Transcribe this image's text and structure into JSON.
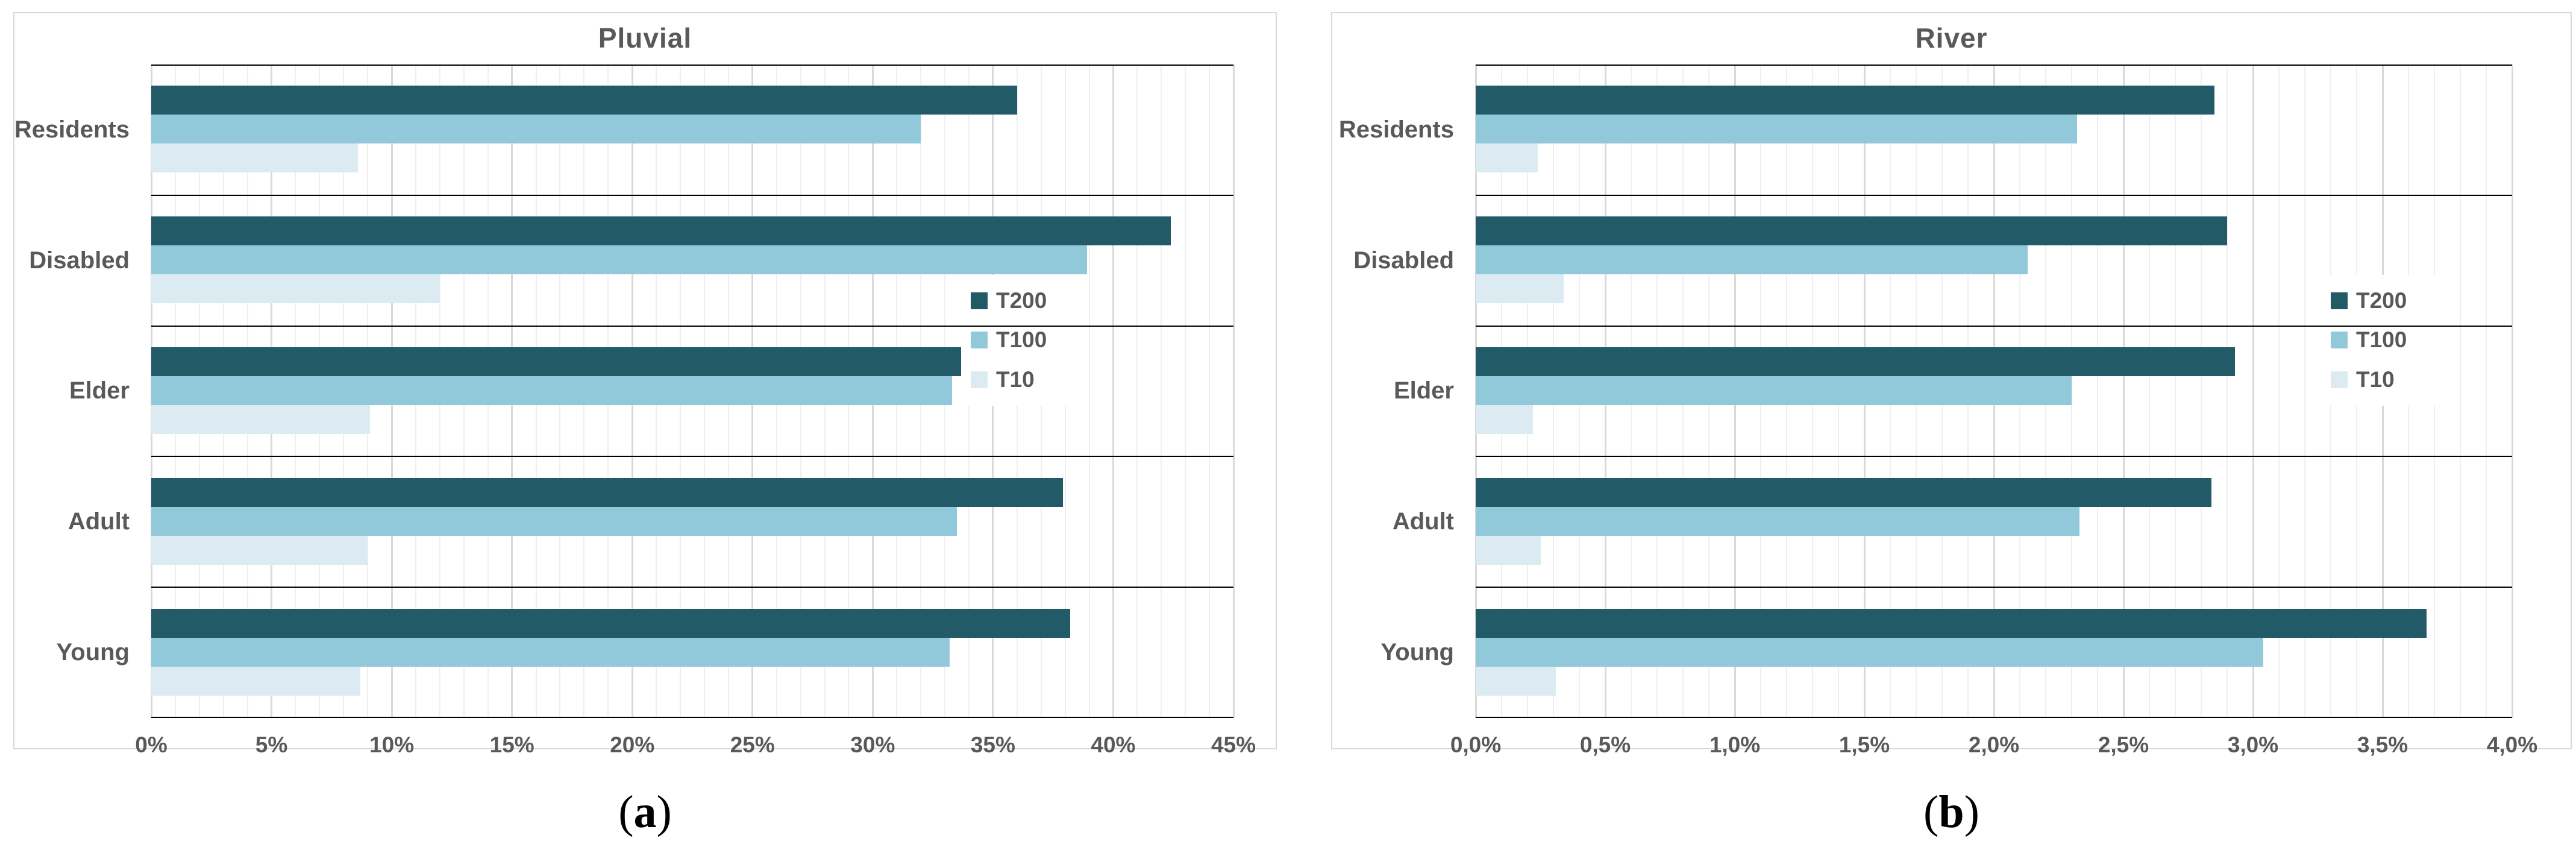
{
  "page": {
    "background": "#ffffff",
    "text_color": "#595959"
  },
  "colors": {
    "t200": "#235a67",
    "t100": "#92c9da",
    "t10": "#dcebf2",
    "grid_major": "#d9d9d9",
    "grid_minor": "#efefef",
    "axis_line": "#000000",
    "panel_border": "#d9d9d9",
    "label_text": "#595959"
  },
  "captions": [
    {
      "open": "(",
      "letter": "a",
      "close": ")"
    },
    {
      "open": "(",
      "letter": "b",
      "close": ")"
    }
  ],
  "chart_data": [
    {
      "type": "bar",
      "orientation": "horizontal",
      "title": "Pluvial",
      "categories": [
        "Residents",
        "Disabled",
        "Elder",
        "Adult",
        "Young"
      ],
      "series": [
        {
          "name": "T200",
          "color": "#235a67",
          "values": [
            36.0,
            42.4,
            37.2,
            37.9,
            38.2
          ]
        },
        {
          "name": "T100",
          "color": "#92c9da",
          "values": [
            32.0,
            38.9,
            33.3,
            33.5,
            33.2
          ]
        },
        {
          "name": "T10",
          "color": "#dcebf2",
          "values": [
            8.6,
            12.0,
            9.1,
            9.0,
            8.7
          ]
        }
      ],
      "xlim": [
        0,
        45
      ],
      "tick_step": 5,
      "minor_step": 1,
      "ticks": [
        "0%",
        "5%",
        "10%",
        "15%",
        "20%",
        "25%",
        "30%",
        "35%",
        "40%",
        "45%"
      ],
      "unit": "%",
      "grid": true,
      "legend_position": "right-middle",
      "legend_entries": [
        "T200",
        "T100",
        "T10"
      ]
    },
    {
      "type": "bar",
      "orientation": "horizontal",
      "title": "River",
      "categories": [
        "Residents",
        "Disabled",
        "Elder",
        "Adult",
        "Young"
      ],
      "series": [
        {
          "name": "T200",
          "color": "#235a67",
          "values": [
            2.85,
            2.9,
            2.93,
            2.84,
            3.67
          ]
        },
        {
          "name": "T100",
          "color": "#92c9da",
          "values": [
            2.32,
            2.13,
            2.3,
            2.33,
            3.04
          ]
        },
        {
          "name": "T10",
          "color": "#dcebf2",
          "values": [
            0.24,
            0.34,
            0.22,
            0.25,
            0.31
          ]
        }
      ],
      "xlim": [
        0,
        4
      ],
      "tick_step": 0.5,
      "minor_step": 0.1,
      "ticks": [
        "0,0%",
        "0,5%",
        "1,0%",
        "1,5%",
        "2,0%",
        "2,5%",
        "3,0%",
        "3,5%",
        "4,0%"
      ],
      "unit": "%",
      "grid": true,
      "legend_position": "right-middle",
      "legend_entries": [
        "T200",
        "T100",
        "T10"
      ]
    }
  ]
}
